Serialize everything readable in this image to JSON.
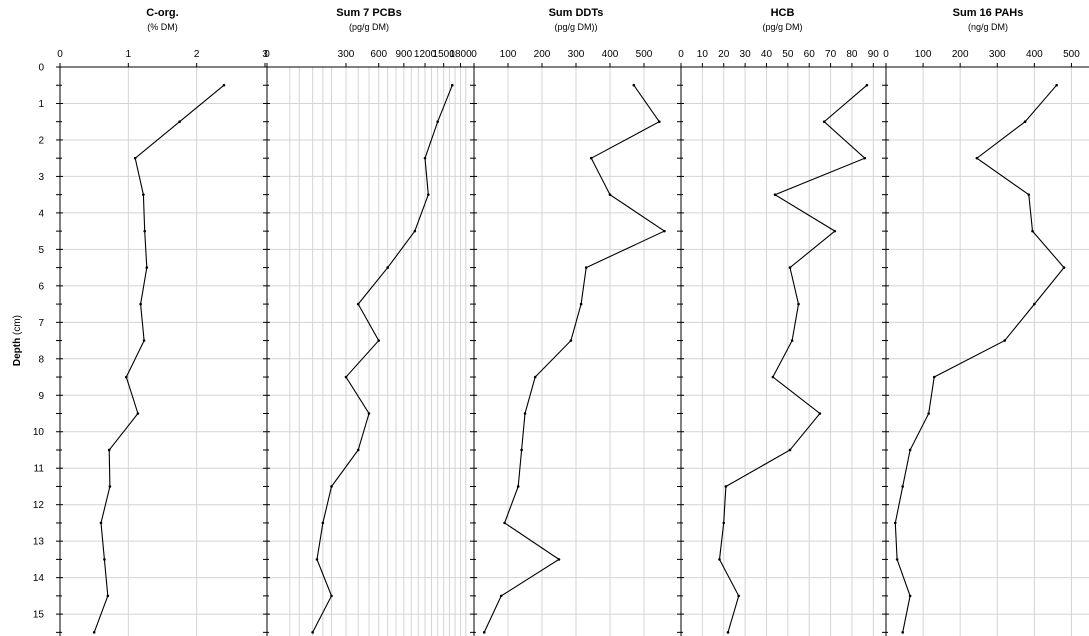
{
  "chart_data": {
    "type": "line",
    "depth": [
      0.5,
      1.5,
      2.5,
      3.5,
      4.5,
      5.5,
      6.5,
      7.5,
      8.5,
      9.5,
      10.5,
      11.5,
      12.5,
      13.5,
      14.5,
      15.5
    ],
    "y_axis": {
      "label_bold": "Depth",
      "label_unit": "(cm)",
      "ylim": [
        0,
        15.6
      ],
      "ticks": [
        0,
        1,
        2,
        3,
        4,
        5,
        6,
        7,
        8,
        9,
        10,
        11,
        12,
        13,
        14,
        15
      ],
      "inverted": true
    },
    "grid": true,
    "panels": [
      {
        "title": "C-org.",
        "unit": "(% DM)",
        "scale": "linear",
        "xlim": [
          0,
          3
        ],
        "ticks": [
          0,
          1,
          2,
          3
        ],
        "values": [
          2.4,
          1.75,
          1.1,
          1.22,
          1.24,
          1.27,
          1.18,
          1.23,
          0.97,
          1.14,
          0.72,
          0.73,
          0.6,
          0.65,
          0.7,
          0.5
        ]
      },
      {
        "title": "Sum 7 PCBs",
        "unit": "(pg/g DM)",
        "scale": "sqrt",
        "xlim": [
          0,
          2000
        ],
        "ticks": [
          0,
          300,
          600,
          900,
          1200,
          1500,
          1800
        ],
        "grid": [
          0,
          25,
          50,
          100,
          150,
          200,
          300,
          400,
          500,
          600,
          700,
          800,
          900,
          1000,
          1100,
          1200,
          1300,
          1400,
          1500,
          1600,
          1700,
          1800,
          1900,
          2000
        ],
        "values": [
          1650,
          1400,
          1200,
          1250,
          1050,
          700,
          400,
          600,
          300,
          500,
          400,
          200,
          150,
          120,
          200,
          100
        ]
      },
      {
        "title": "Sum DDTs",
        "unit": "(pg/g DM))",
        "scale": "linear",
        "xlim": [
          0,
          600
        ],
        "ticks": [
          0,
          100,
          200,
          300,
          400,
          500
        ],
        "values": [
          470,
          545,
          345,
          400,
          560,
          330,
          315,
          285,
          180,
          150,
          140,
          130,
          90,
          250,
          80,
          30
        ]
      },
      {
        "title": "HCB",
        "unit": "(pg/g DM)",
        "scale": "linear",
        "xlim": [
          0,
          95
        ],
        "ticks": [
          0,
          10,
          20,
          30,
          40,
          50,
          60,
          70,
          80,
          90
        ],
        "values": [
          87,
          67,
          86,
          44,
          72,
          51,
          55,
          52,
          43,
          65,
          51,
          21,
          20,
          18,
          27,
          22
        ]
      },
      {
        "title": "Sum 16 PAHs",
        "unit": "(ng/g DM)",
        "scale": "linear",
        "xlim": [
          0,
          550
        ],
        "ticks": [
          0,
          100,
          200,
          300,
          400,
          500
        ],
        "values": [
          460,
          375,
          245,
          385,
          395,
          480,
          400,
          320,
          130,
          115,
          65,
          45,
          25,
          30,
          65,
          45
        ]
      }
    ]
  }
}
